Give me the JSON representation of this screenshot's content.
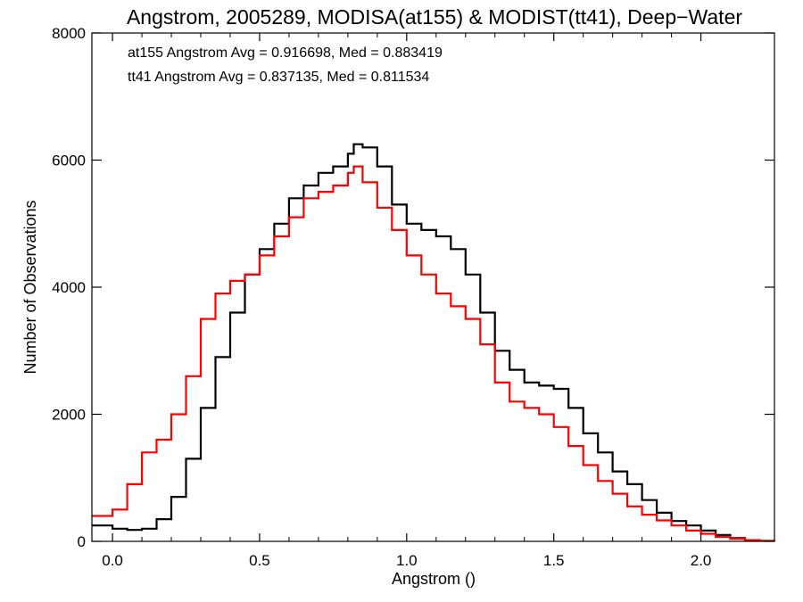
{
  "chart_data": {
    "type": "line",
    "title": "Angstrom, 2005289, MODISA(at155) & MODIST(tt41), Deep−Water",
    "xlabel": "Angstrom ()",
    "ylabel": "Number of Observations",
    "xlim": [
      -0.07,
      2.25
    ],
    "ylim": [
      0,
      8000
    ],
    "x_ticks": [
      "0.0",
      "0.5",
      "1.0",
      "1.5",
      "2.0"
    ],
    "y_ticks": [
      "0",
      "2000",
      "4000",
      "6000",
      "8000"
    ],
    "x_tick_values": [
      0.0,
      0.5,
      1.0,
      1.5,
      2.0
    ],
    "y_tick_values": [
      0,
      2000,
      4000,
      6000,
      8000
    ],
    "grid": false,
    "annotations": [
      {
        "text": "at155 Angstrom Avg = 0.916698, Med = 0.883419",
        "color": "#000000"
      },
      {
        "text": "tt41 Angstrom Avg = 0.837135, Med = 0.811534",
        "color": "#ff0000"
      }
    ],
    "series": [
      {
        "color": "#000000",
        "x": [
          -0.07,
          0.0,
          0.05,
          0.1,
          0.15,
          0.2,
          0.25,
          0.3,
          0.35,
          0.4,
          0.45,
          0.5,
          0.55,
          0.6,
          0.65,
          0.7,
          0.75,
          0.8,
          0.82,
          0.85,
          0.9,
          0.95,
          1.0,
          1.05,
          1.1,
          1.15,
          1.2,
          1.25,
          1.3,
          1.35,
          1.4,
          1.45,
          1.5,
          1.55,
          1.6,
          1.65,
          1.7,
          1.75,
          1.8,
          1.85,
          1.9,
          1.95,
          2.0,
          2.05,
          2.1,
          2.15
        ],
        "values": [
          250,
          200,
          180,
          200,
          350,
          700,
          1300,
          2100,
          2900,
          3600,
          4200,
          4600,
          5000,
          5400,
          5600,
          5800,
          5900,
          6100,
          6250,
          6200,
          5900,
          5300,
          5000,
          4900,
          4800,
          4600,
          4200,
          3600,
          3000,
          2700,
          2500,
          2450,
          2400,
          2100,
          1700,
          1400,
          1100,
          900,
          650,
          450,
          320,
          250,
          170,
          100,
          50,
          20
        ]
      },
      {
        "color": "#ff0000",
        "x": [
          -0.07,
          0.0,
          0.05,
          0.1,
          0.15,
          0.2,
          0.25,
          0.3,
          0.35,
          0.4,
          0.45,
          0.5,
          0.55,
          0.6,
          0.65,
          0.7,
          0.75,
          0.8,
          0.82,
          0.85,
          0.9,
          0.95,
          1.0,
          1.05,
          1.1,
          1.15,
          1.2,
          1.25,
          1.3,
          1.35,
          1.4,
          1.45,
          1.5,
          1.55,
          1.6,
          1.65,
          1.7,
          1.75,
          1.8,
          1.85,
          1.9,
          1.95,
          2.0,
          2.05,
          2.1,
          2.15,
          2.2,
          2.25
        ],
        "values": [
          400,
          500,
          900,
          1400,
          1600,
          2000,
          2600,
          3500,
          3900,
          4100,
          4200,
          4500,
          4800,
          5100,
          5400,
          5500,
          5600,
          5800,
          5900,
          5650,
          5250,
          4900,
          4500,
          4200,
          3900,
          3700,
          3500,
          3100,
          2500,
          2200,
          2100,
          2000,
          1800,
          1500,
          1200,
          950,
          750,
          550,
          420,
          330,
          250,
          170,
          120,
          70,
          40,
          20,
          10,
          5
        ]
      }
    ]
  }
}
